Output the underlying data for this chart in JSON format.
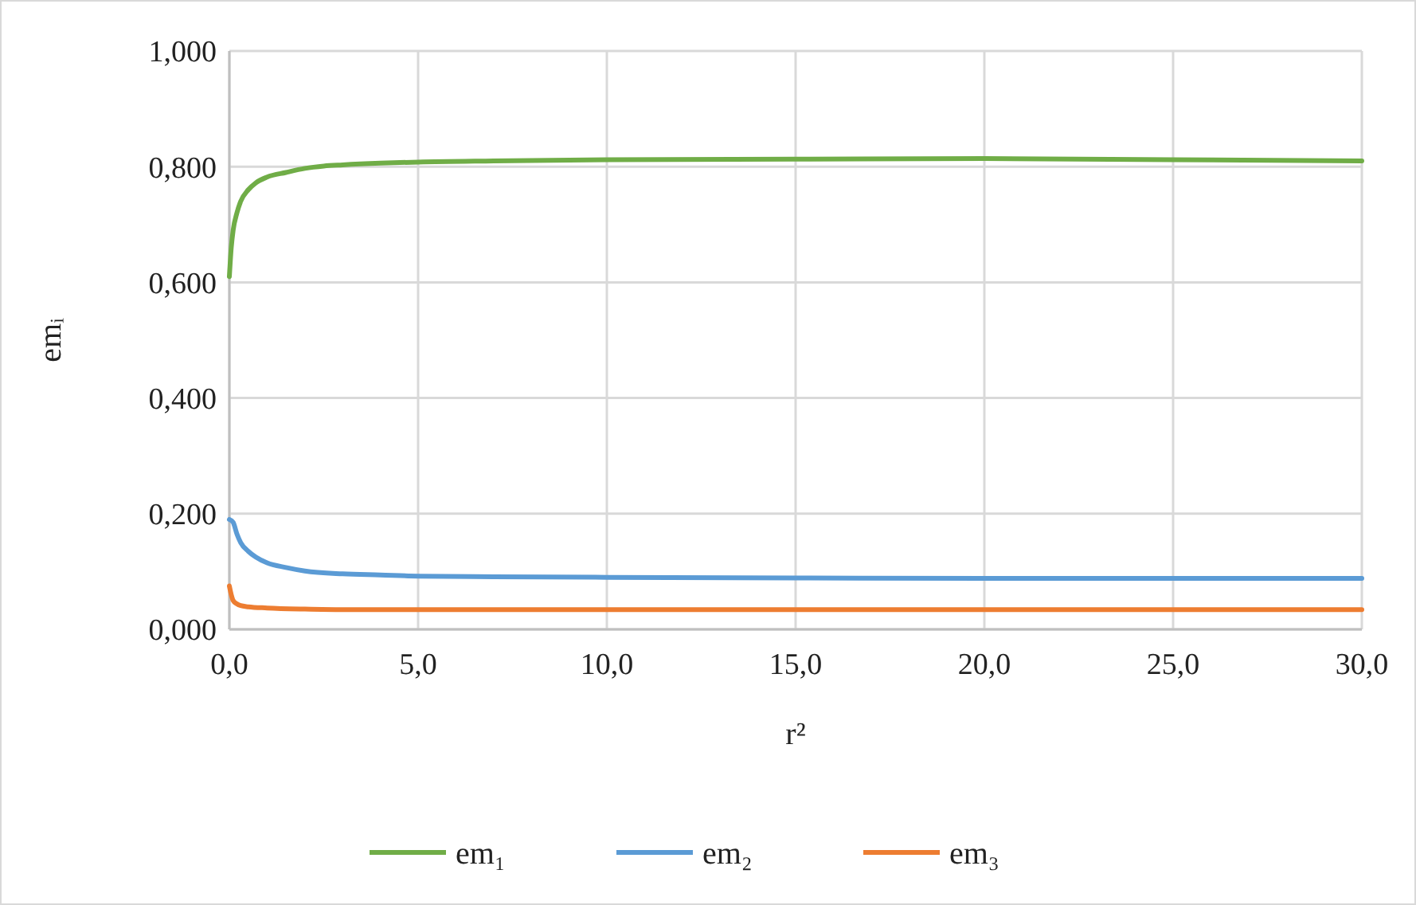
{
  "chart_data": {
    "type": "line",
    "xlabel": "r²",
    "ylabel": "emᵢ",
    "xlim": [
      0,
      30
    ],
    "ylim": [
      0,
      1
    ],
    "xticks": [
      {
        "value": 0,
        "label": "0,0"
      },
      {
        "value": 5,
        "label": "5,0"
      },
      {
        "value": 10,
        "label": "10,0"
      },
      {
        "value": 15,
        "label": "15,0"
      },
      {
        "value": 20,
        "label": "20,0"
      },
      {
        "value": 25,
        "label": "25,0"
      },
      {
        "value": 30,
        "label": "30,0"
      }
    ],
    "yticks": [
      {
        "value": 0,
        "label": "0,000"
      },
      {
        "value": 0.2,
        "label": "0,200"
      },
      {
        "value": 0.4,
        "label": "0,400"
      },
      {
        "value": 0.6,
        "label": "0,600"
      },
      {
        "value": 0.8,
        "label": "0,800"
      },
      {
        "value": 1,
        "label": "1,000"
      }
    ],
    "grid": true,
    "legend": "bottom",
    "marker": "none",
    "line_style": "solid",
    "series": [
      {
        "name": "em₁",
        "color": "#70ad47",
        "x": [
          0,
          0.05,
          0.1,
          0.2,
          0.3,
          0.5,
          0.7,
          1,
          1.5,
          2,
          2.5,
          3,
          4,
          5,
          7,
          10,
          15,
          20,
          25,
          30
        ],
        "values": [
          0.61,
          0.66,
          0.69,
          0.72,
          0.74,
          0.76,
          0.772,
          0.782,
          0.79,
          0.797,
          0.801,
          0.803,
          0.806,
          0.808,
          0.81,
          0.812,
          0.813,
          0.814,
          0.812,
          0.81
        ]
      },
      {
        "name": "em₂",
        "color": "#5b9bd5",
        "x": [
          0,
          0.1,
          0.2,
          0.3,
          0.5,
          0.7,
          1,
          1.5,
          2,
          3,
          4,
          5,
          7,
          10,
          15,
          20,
          25,
          30
        ],
        "values": [
          0.19,
          0.185,
          0.165,
          0.15,
          0.135,
          0.125,
          0.115,
          0.107,
          0.101,
          0.096,
          0.094,
          0.092,
          0.091,
          0.09,
          0.089,
          0.088,
          0.088,
          0.088
        ]
      },
      {
        "name": "em₃",
        "color": "#ed7d31",
        "x": [
          0,
          0.05,
          0.1,
          0.2,
          0.3,
          0.5,
          1,
          2,
          3,
          5,
          10,
          20,
          30
        ],
        "values": [
          0.075,
          0.06,
          0.05,
          0.044,
          0.041,
          0.039,
          0.037,
          0.035,
          0.034,
          0.034,
          0.034,
          0.034,
          0.034
        ]
      }
    ]
  }
}
